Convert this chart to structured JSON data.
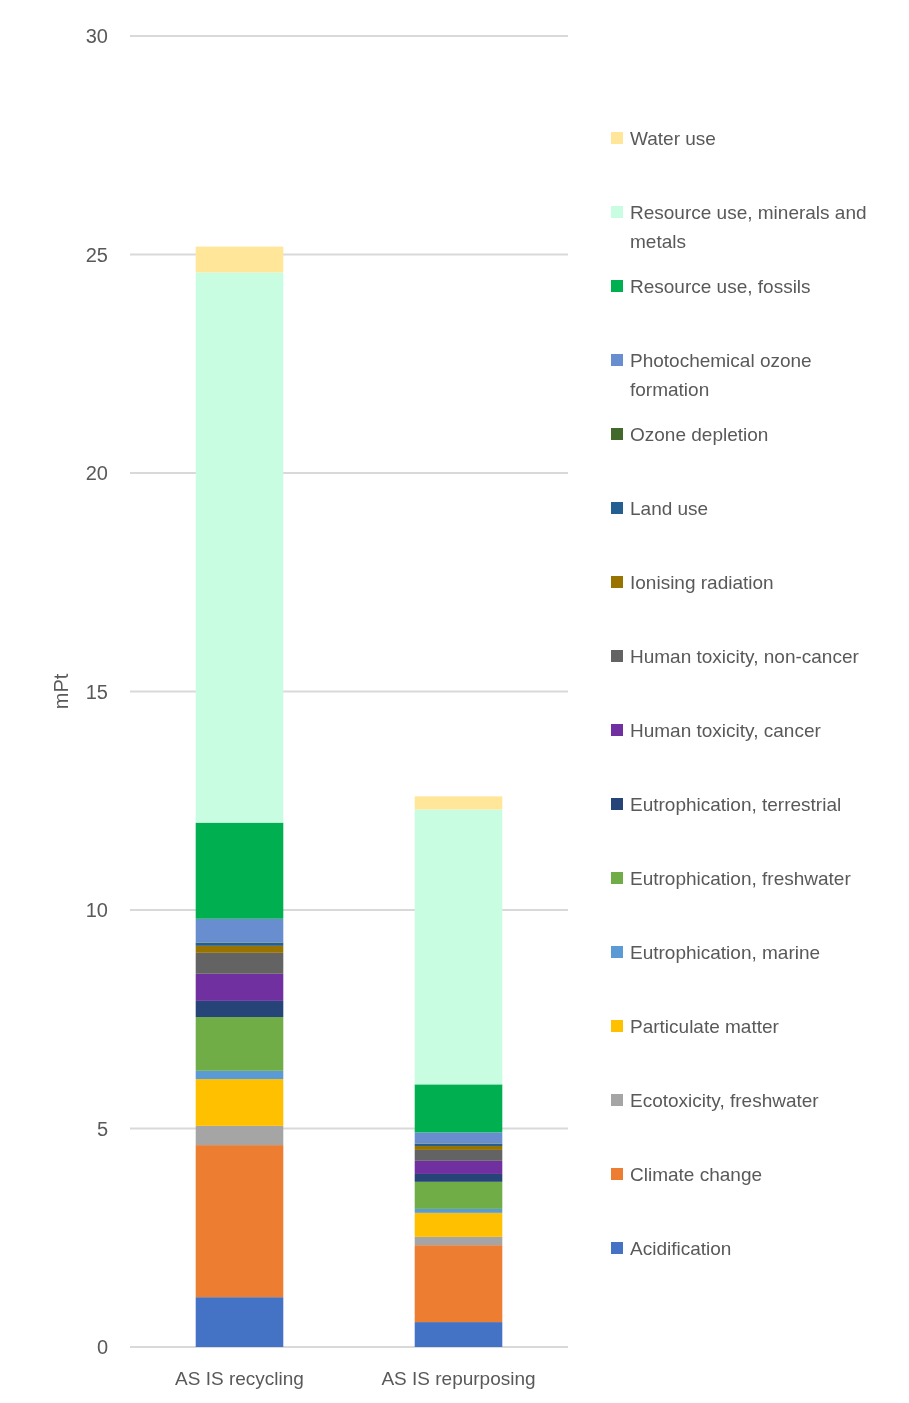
{
  "chart_data": {
    "type": "bar",
    "stacked": true,
    "ylabel": "mPt",
    "categories": [
      "AS IS recycling",
      "AS IS repurposing"
    ],
    "ylim": [
      0,
      30
    ],
    "yticks": [
      0,
      5,
      10,
      15,
      20,
      25,
      30
    ],
    "grid": "y",
    "legend": "right",
    "series": [
      {
        "name": "Acidification",
        "color": "#4472c4",
        "values": [
          1.14,
          0.57
        ]
      },
      {
        "name": "Climate change",
        "color": "#ed7d31",
        "values": [
          3.48,
          1.76
        ]
      },
      {
        "name": "Ecotoxicity, freshwater",
        "color": "#a5a5a5",
        "values": [
          0.44,
          0.19
        ]
      },
      {
        "name": "Particulate matter",
        "color": "#ffc000",
        "values": [
          1.07,
          0.55
        ]
      },
      {
        "name": "Eutrophication, marine",
        "color": "#5b9bd5",
        "values": [
          0.19,
          0.09
        ]
      },
      {
        "name": "Eutrophication, freshwater",
        "color": "#70ad47",
        "values": [
          1.23,
          0.62
        ]
      },
      {
        "name": "Eutrophication, terrestrial",
        "color": "#264478",
        "values": [
          0.37,
          0.18
        ]
      },
      {
        "name": "Human toxicity, cancer",
        "color": "#7030a0",
        "values": [
          0.62,
          0.3
        ]
      },
      {
        "name": "Human toxicity, non-cancer",
        "color": "#636363",
        "values": [
          0.48,
          0.25
        ]
      },
      {
        "name": "Ionising radiation",
        "color": "#997300",
        "values": [
          0.16,
          0.09
        ]
      },
      {
        "name": "Land use",
        "color": "#255e91",
        "values": [
          0.07,
          0.05
        ]
      },
      {
        "name": "Ozone depletion",
        "color": "#43682b",
        "values": [
          0.01,
          0.01
        ]
      },
      {
        "name": "Photochemical ozone formation",
        "color": "#698ed0",
        "values": [
          0.54,
          0.25
        ]
      },
      {
        "name": "Resource use, fossils",
        "color": "#00b050",
        "values": [
          2.2,
          1.1
        ]
      },
      {
        "name": "Resource use, minerals and metals",
        "color": "#c8fde2",
        "values": [
          12.59,
          6.29
        ]
      },
      {
        "name": "Water use",
        "color": "#ffe699",
        "values": [
          0.59,
          0.3
        ]
      }
    ]
  }
}
